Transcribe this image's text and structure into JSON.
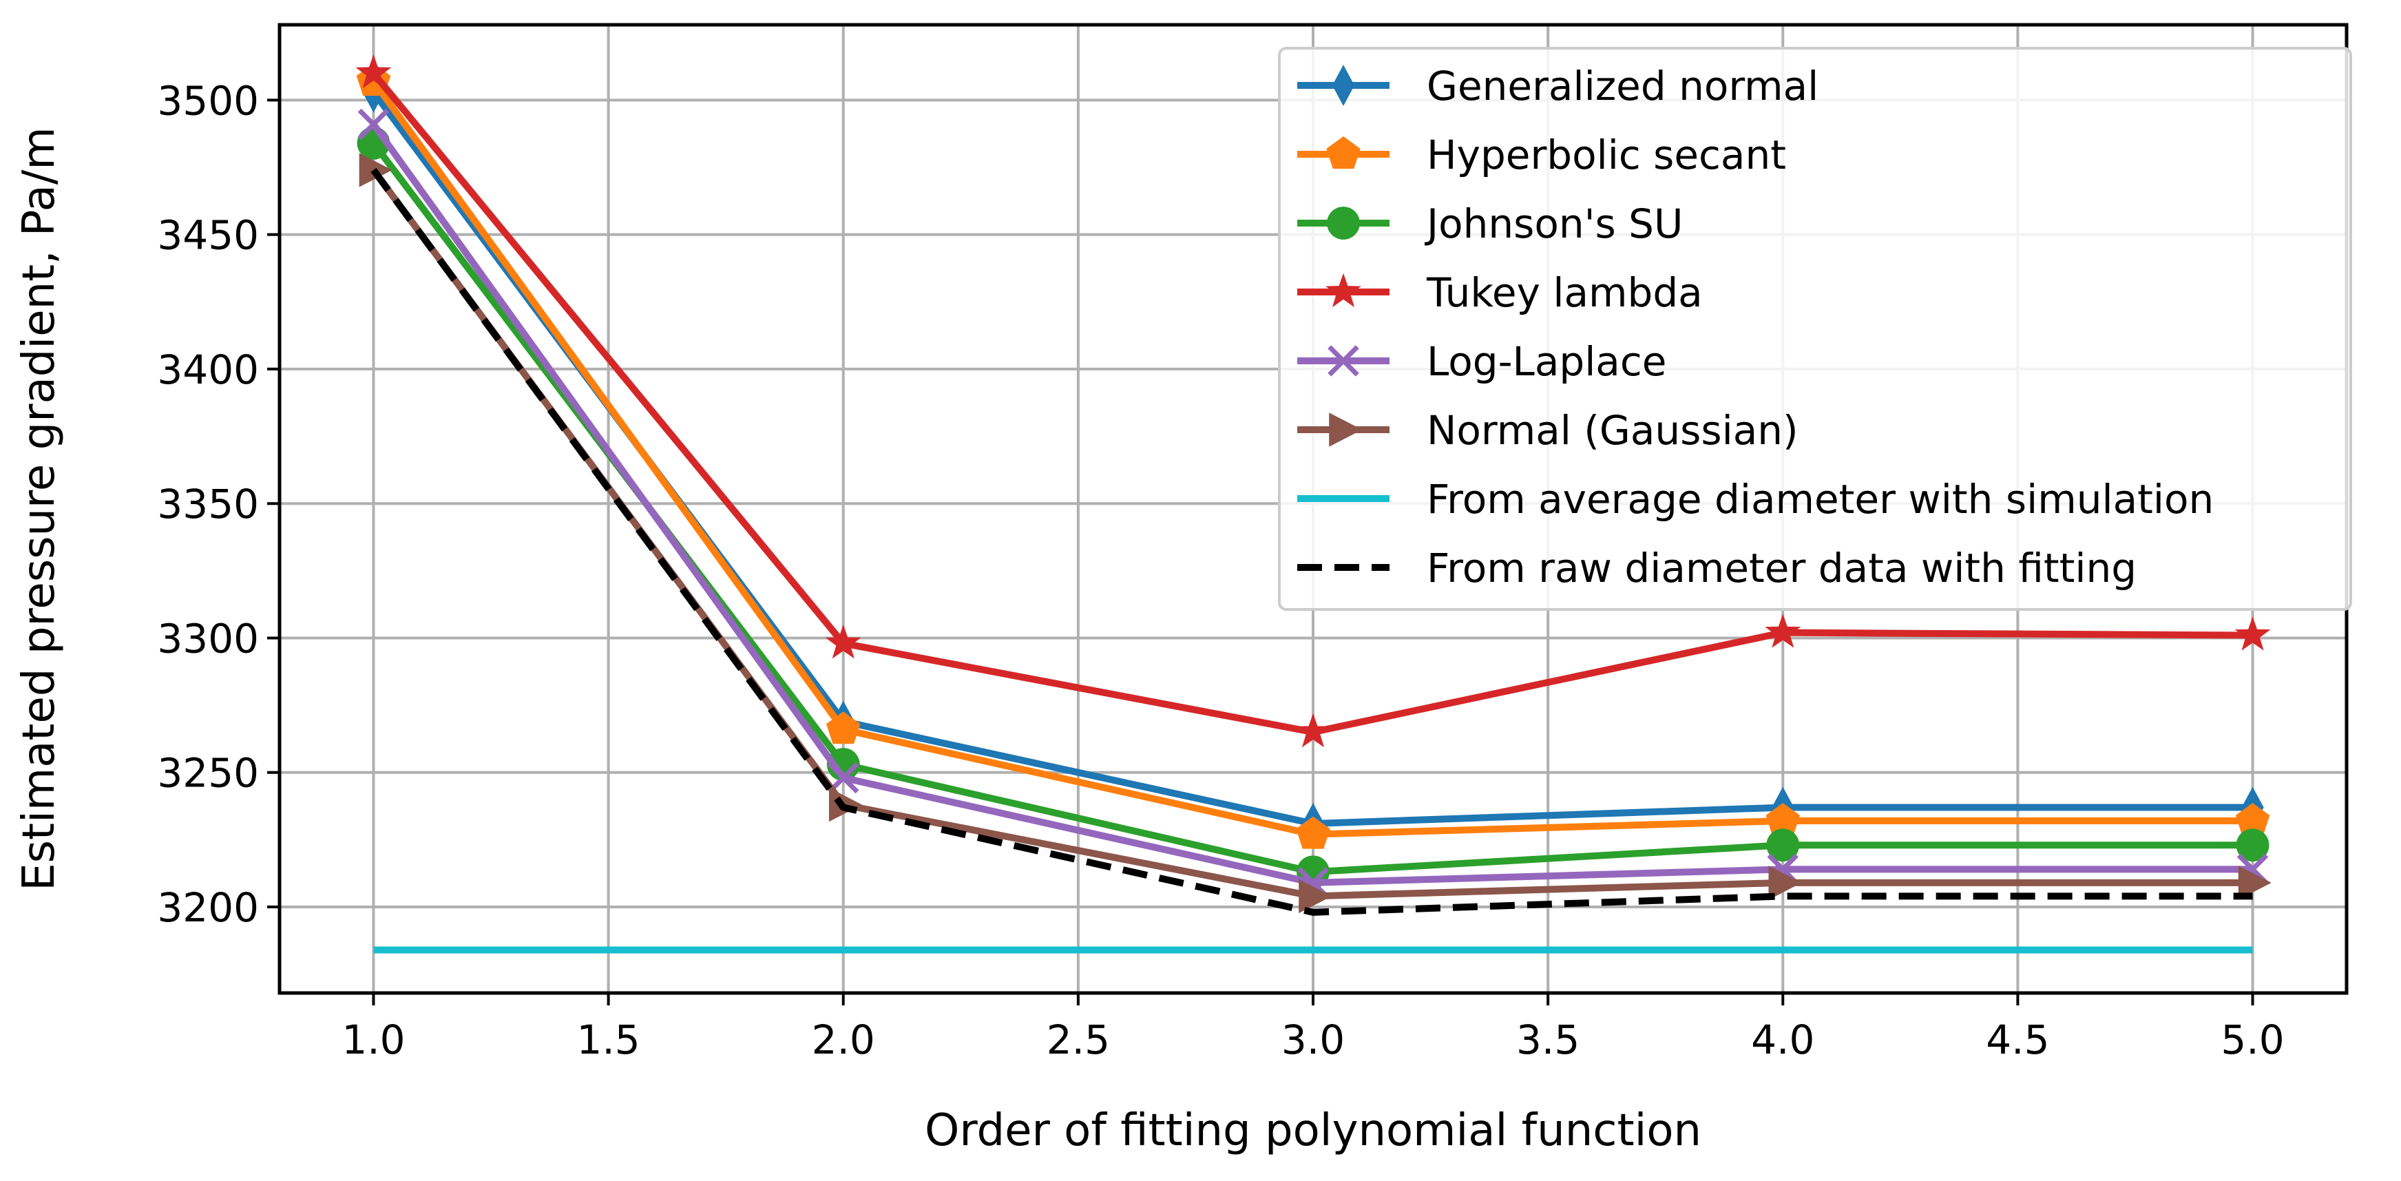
{
  "chart_data": {
    "type": "line",
    "title": "",
    "xlabel": "Order of fitting polynomial function",
    "ylabel": "Estimated pressure gradient, Pa/m",
    "xlim": [
      0.8,
      5.2
    ],
    "ylim": [
      3168,
      3528
    ],
    "x_ticks": [
      1.0,
      1.5,
      2.0,
      2.5,
      3.0,
      3.5,
      4.0,
      4.5,
      5.0
    ],
    "x_tick_labels": [
      "1.0",
      "1.5",
      "2.0",
      "2.5",
      "3.0",
      "3.5",
      "4.0",
      "4.5",
      "5.0"
    ],
    "y_ticks": [
      3200,
      3250,
      3300,
      3350,
      3400,
      3450,
      3500
    ],
    "y_tick_labels": [
      "3200",
      "3250",
      "3300",
      "3350",
      "3400",
      "3450",
      "3500"
    ],
    "grid": true,
    "legend_position": "top-right",
    "x": [
      1,
      2,
      3,
      4,
      5
    ],
    "series": [
      {
        "name": "Generalized normal",
        "color": "#1f77b4",
        "marker": "diamond",
        "line": "solid",
        "values": [
          3503,
          3269,
          3231,
          3237,
          3237
        ]
      },
      {
        "name": "Hyperbolic secant",
        "color": "#ff7f0e",
        "marker": "pentagon",
        "line": "solid",
        "values": [
          3507,
          3266,
          3227,
          3232,
          3232
        ]
      },
      {
        "name": "Johnson's SU",
        "color": "#2ca02c",
        "marker": "circle",
        "line": "solid",
        "values": [
          3484,
          3253,
          3213,
          3223,
          3223
        ]
      },
      {
        "name": "Tukey lambda",
        "color": "#d62728",
        "marker": "star",
        "line": "solid",
        "values": [
          3510,
          3298,
          3265,
          3302,
          3301
        ]
      },
      {
        "name": "Log-Laplace",
        "color": "#9467bd",
        "marker": "x",
        "line": "solid",
        "values": [
          3491,
          3248,
          3209,
          3214,
          3214
        ]
      },
      {
        "name": "Normal (Gaussian)",
        "color": "#8c564b",
        "marker": "triangle-right",
        "line": "solid",
        "values": [
          3474,
          3238,
          3204,
          3209,
          3209
        ]
      },
      {
        "name": "From average diameter with simulation",
        "color": "#17becf",
        "marker": "none",
        "line": "solid",
        "values": [
          3184,
          3184,
          3184,
          3184,
          3184
        ]
      },
      {
        "name": "From raw diameter data with fitting",
        "color": "#000000",
        "marker": "none",
        "line": "dashed",
        "values": [
          3474,
          3237,
          3198,
          3204,
          3204
        ]
      }
    ]
  }
}
